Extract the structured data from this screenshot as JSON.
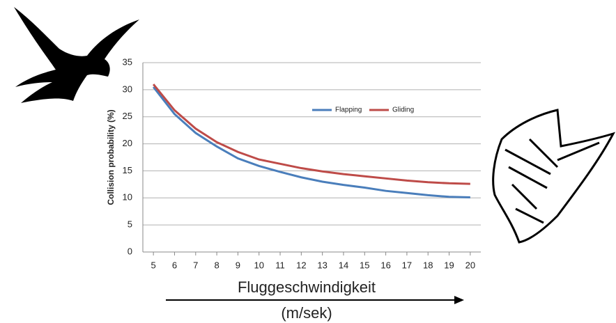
{
  "chart_data": {
    "type": "line",
    "ylabel": "Collision probability (%)",
    "xlabel": "Fluggeschwindigkeit",
    "xunit": "(m/sek)",
    "x": [
      5,
      6,
      7,
      8,
      9,
      10,
      11,
      12,
      13,
      14,
      15,
      16,
      17,
      18,
      19,
      20
    ],
    "series": [
      {
        "name": "Flapping",
        "color": "#4a7ebb",
        "values": [
          30.5,
          25.5,
          22,
          19.5,
          17.3,
          15.9,
          14.8,
          13.8,
          13.0,
          12.4,
          11.9,
          11.3,
          10.9,
          10.5,
          10.2,
          10.1
        ]
      },
      {
        "name": "Gliding",
        "color": "#be4b48",
        "values": [
          31,
          26.2,
          22.8,
          20.3,
          18.5,
          17.1,
          16.3,
          15.5,
          14.9,
          14.4,
          14.0,
          13.6,
          13.2,
          12.9,
          12.7,
          12.6
        ]
      }
    ],
    "xlim": [
      4.5,
      20.5
    ],
    "xticks": [
      5,
      6,
      7,
      8,
      9,
      10,
      11,
      12,
      13,
      14,
      15,
      16,
      17,
      18,
      19,
      20
    ],
    "ylim": [
      0,
      35
    ],
    "yticks": [
      0,
      5,
      10,
      15,
      20,
      25,
      30,
      35
    ],
    "grid": true
  }
}
